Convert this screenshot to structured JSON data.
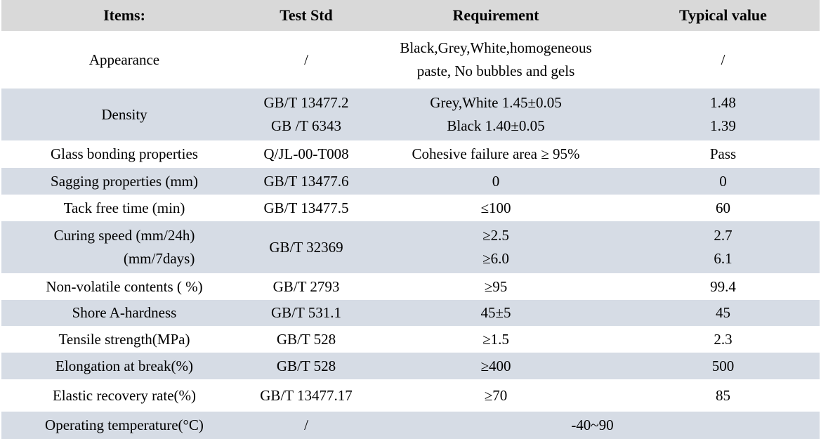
{
  "header": {
    "columns": [
      "Items:",
      "Test Std",
      "Requirement",
      "Typical value"
    ]
  },
  "rows": [
    {
      "item": [
        "Appearance"
      ],
      "std": [
        "/"
      ],
      "req": [
        "Black,Grey,White,homogeneous",
        "paste, No bubbles and gels"
      ],
      "typ": [
        "/"
      ]
    },
    {
      "item": [
        "Density"
      ],
      "std": [
        "GB/T 13477.2",
        "GB /T 6343"
      ],
      "req": [
        "Grey,White 1.45±0.05",
        "Black 1.40±0.05"
      ],
      "typ": [
        "1.48",
        "1.39"
      ]
    },
    {
      "item": [
        "Glass bonding properties"
      ],
      "std": [
        "Q/JL-00-T008"
      ],
      "req": [
        "Cohesive failure area ≥ 95%"
      ],
      "typ": [
        "Pass"
      ]
    },
    {
      "item": [
        "Sagging properties (mm)"
      ],
      "std": [
        "GB/T 13477.6"
      ],
      "req": [
        "0"
      ],
      "typ": [
        "0"
      ]
    },
    {
      "item": [
        "Tack free time (min)"
      ],
      "std": [
        "GB/T 13477.5"
      ],
      "req": [
        "≤100"
      ],
      "typ": [
        "60"
      ]
    },
    {
      "item": [
        "Curing speed (mm/24h)",
        "(mm/7days)"
      ],
      "std": [
        "GB/T 32369"
      ],
      "req": [
        "≥2.5",
        "≥6.0"
      ],
      "typ": [
        "2.7",
        "6.1"
      ]
    },
    {
      "item": [
        "Non-volatile contents ( %)"
      ],
      "std": [
        "GB/T 2793"
      ],
      "req": [
        "≥95"
      ],
      "typ": [
        "99.4"
      ]
    },
    {
      "item": [
        "Shore A-hardness"
      ],
      "std": [
        "GB/T 531.1"
      ],
      "req": [
        "45±5"
      ],
      "typ": [
        "45"
      ]
    },
    {
      "item": [
        "Tensile strength(MPa)"
      ],
      "std": [
        "GB/T 528"
      ],
      "req": [
        "≥1.5"
      ],
      "typ": [
        "2.3"
      ]
    },
    {
      "item": [
        "Elongation at break(%)"
      ],
      "std": [
        "GB/T 528"
      ],
      "req": [
        "≥400"
      ],
      "typ": [
        "500"
      ]
    },
    {
      "item": [
        "Elastic recovery rate(%)"
      ],
      "std": [
        "GB/T 13477.17"
      ],
      "req": [
        "≥70"
      ],
      "typ": [
        "85"
      ]
    },
    {
      "item": [
        "Operating temperature(°C)"
      ],
      "std": [
        "/"
      ],
      "req": [
        "-40~90"
      ],
      "typ": null
    }
  ],
  "colors": {
    "header_bg": "#d9d9d9",
    "alt_row_bg": "#d6dce5",
    "row_bg": "#ffffff",
    "text": "#000000"
  }
}
